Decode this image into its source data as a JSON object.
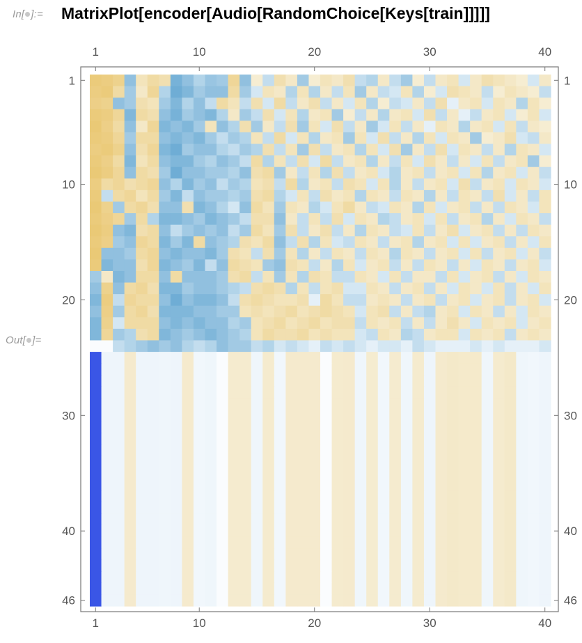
{
  "notebook": {
    "input_label_prefix": "In[",
    "input_label_suffix": "]:=",
    "output_label_prefix": "Out[",
    "output_label_suffix": "]=",
    "input_code": "MatrixPlot[encoder[Audio[RandomChoice[Keys[train]]]]]"
  },
  "chart_data": {
    "type": "heatmap",
    "title": "",
    "xlabel": "",
    "ylabel": "",
    "columns": 40,
    "rows": 46,
    "x_ticks": [
      1,
      10,
      20,
      30,
      40
    ],
    "y_ticks": [
      1,
      10,
      20,
      30,
      40,
      46
    ],
    "colors": {
      "high": "#e9c46a",
      "mid": "#f7f1de",
      "low": "#4d9acb",
      "accent_column": "#3a56e6",
      "frame": "#777777",
      "tick_text": "#555555"
    },
    "rows_data": [
      [
        0.85,
        0.8,
        0.7,
        -0.6,
        0.3,
        0.5,
        0.4,
        -0.75,
        -0.6,
        -0.4,
        -0.55,
        -0.5,
        0.6,
        -0.6,
        0.1,
        -0.3,
        0.4,
        0.2,
        -0.5,
        0.1,
        0.3,
        0.2,
        0.4,
        -0.3,
        -0.4,
        0.2,
        -0.3,
        -0.5,
        0.1,
        -0.3,
        0.2,
        0.3,
        -0.2,
        0.2,
        0.4,
        0.3,
        0.2,
        0.1,
        -0.2,
        0.2
      ],
      [
        0.8,
        0.85,
        0.5,
        -0.5,
        0.2,
        0.6,
        -0.4,
        -0.8,
        -0.7,
        -0.5,
        -0.6,
        -0.6,
        0.5,
        -0.5,
        -0.2,
        0.3,
        0.2,
        -0.4,
        0.3,
        -0.4,
        0.2,
        -0.3,
        0.3,
        -0.5,
        0.2,
        -0.3,
        -0.2,
        0.3,
        -0.4,
        0.1,
        -0.2,
        0.4,
        0.3,
        0.2,
        -0.3,
        0.1,
        0.3,
        0.2,
        0.1,
        -0.3
      ],
      [
        0.75,
        0.7,
        -0.6,
        -0.5,
        0.4,
        0.3,
        -0.5,
        -0.7,
        -0.4,
        -0.6,
        -0.3,
        0.5,
        0.3,
        -0.3,
        0.4,
        -0.2,
        0.5,
        -0.3,
        0.2,
        0.4,
        -0.3,
        0.2,
        -0.2,
        0.3,
        -0.4,
        0.1,
        -0.3,
        -0.2,
        0.2,
        -0.3,
        0.4,
        -0.1,
        0.2,
        0.3,
        -0.2,
        0.3,
        0.2,
        -0.4,
        0.3,
        0.1
      ],
      [
        0.85,
        0.8,
        0.6,
        -0.7,
        0.5,
        0.4,
        -0.6,
        -0.75,
        -0.5,
        -0.6,
        -0.7,
        -0.4,
        0.2,
        -0.5,
        -0.3,
        0.4,
        -0.2,
        0.3,
        -0.4,
        0.2,
        0.3,
        -0.5,
        0.1,
        -0.3,
        0.2,
        -0.4,
        0.2,
        0.3,
        -0.2,
        0.4,
        -0.3,
        0.2,
        -0.1,
        -0.3,
        0.2,
        0.3,
        -0.2,
        0.1,
        0.3,
        -0.2
      ],
      [
        0.9,
        0.75,
        0.5,
        -0.6,
        0.2,
        0.6,
        -0.7,
        -0.6,
        -0.7,
        -0.5,
        0.3,
        -0.6,
        -0.4,
        0.4,
        -0.5,
        0.2,
        -0.3,
        0.4,
        -0.5,
        0.3,
        -0.2,
        0.4,
        -0.3,
        0.2,
        -0.5,
        -0.2,
        0.3,
        -0.3,
        0.2,
        -0.1,
        0.3,
        0.2,
        -0.4,
        0.2,
        0.3,
        -0.2,
        0.3,
        -0.3,
        0.2,
        0.1
      ],
      [
        0.85,
        0.8,
        0.6,
        -0.5,
        0.5,
        0.5,
        -0.6,
        -0.7,
        -0.6,
        -0.7,
        -0.5,
        -0.3,
        -0.5,
        -0.4,
        0.3,
        -0.3,
        0.5,
        -0.2,
        0.3,
        -0.4,
        0.2,
        0.3,
        -0.5,
        0.3,
        -0.2,
        0.4,
        -0.3,
        0.2,
        -0.4,
        0.3,
        -0.2,
        0.3,
        0.2,
        -0.5,
        0.1,
        0.2,
        0.4,
        -0.2,
        -0.3,
        0.2
      ],
      [
        0.8,
        0.85,
        0.7,
        -0.6,
        0.4,
        0.6,
        -0.7,
        -0.8,
        -0.5,
        -0.6,
        -0.6,
        -0.4,
        -0.3,
        -0.5,
        -0.4,
        0.4,
        -0.3,
        0.3,
        -0.5,
        0.4,
        -0.3,
        0.2,
        0.3,
        -0.4,
        0.3,
        -0.2,
        0.4,
        -0.5,
        0.2,
        -0.3,
        0.4,
        -0.2,
        0.3,
        0.2,
        -0.3,
        0.2,
        -0.4,
        0.3,
        0.2,
        -0.2
      ],
      [
        0.85,
        0.75,
        0.5,
        -0.7,
        0.3,
        0.5,
        -0.6,
        -0.7,
        -0.7,
        -0.5,
        -0.4,
        -0.6,
        -0.5,
        -0.3,
        0.5,
        -0.4,
        0.3,
        -0.3,
        0.4,
        -0.2,
        0.5,
        -0.3,
        0.2,
        0.3,
        -0.4,
        0.2,
        -0.3,
        0.3,
        -0.2,
        0.4,
        0.2,
        -0.3,
        0.2,
        -0.2,
        0.3,
        -0.3,
        0.2,
        0.3,
        -0.5,
        0.1
      ],
      [
        0.9,
        0.8,
        0.6,
        -0.6,
        0.5,
        0.4,
        -0.5,
        -0.8,
        -0.6,
        -0.6,
        -0.5,
        -0.5,
        -0.4,
        -0.6,
        0.4,
        0.5,
        -0.5,
        0.2,
        -0.3,
        0.3,
        -0.4,
        0.4,
        -0.3,
        0.2,
        0.3,
        -0.2,
        -0.4,
        0.2,
        0.3,
        -0.3,
        0.2,
        0.3,
        -0.2,
        0.3,
        -0.4,
        0.2,
        0.3,
        -0.2,
        0.2,
        -0.3
      ],
      [
        0.8,
        0.5,
        0.6,
        0.4,
        0.5,
        0.6,
        -0.6,
        -0.4,
        -0.7,
        -0.5,
        -0.6,
        -0.3,
        -0.5,
        -0.4,
        0.3,
        0.4,
        -0.3,
        0.5,
        -0.4,
        0.2,
        0.3,
        -0.3,
        0.4,
        0.3,
        -0.2,
        0.3,
        -0.4,
        0.2,
        -0.3,
        0.2,
        0.3,
        -0.2,
        0.4,
        -0.3,
        0.2,
        0.3,
        -0.2,
        0.3,
        0.2,
        -0.2
      ],
      [
        0.85,
        -0.3,
        0.5,
        0.6,
        0.3,
        0.5,
        -0.5,
        -0.7,
        -0.3,
        -0.6,
        -0.5,
        -0.5,
        -0.4,
        -0.5,
        0.4,
        0.5,
        -0.4,
        -0.2,
        0.3,
        -0.3,
        0.4,
        0.2,
        0.3,
        -0.4,
        0.3,
        0.2,
        -0.3,
        0.3,
        0.2,
        -0.4,
        0.2,
        -0.3,
        0.3,
        0.2,
        -0.3,
        0.4,
        -0.2,
        0.2,
        -0.3,
        0.3
      ],
      [
        0.9,
        0.7,
        -0.5,
        0.5,
        0.6,
        0.4,
        -0.6,
        -0.6,
        0.4,
        -0.7,
        -0.6,
        -0.4,
        -0.2,
        -0.6,
        0.5,
        0.3,
        -0.5,
        0.3,
        0.2,
        -0.4,
        -0.2,
        0.3,
        0.5,
        0.2,
        -0.3,
        -0.2,
        0.3,
        0.2,
        -0.4,
        0.3,
        -0.2,
        0.2,
        0.3,
        -0.3,
        0.2,
        -0.3,
        0.3,
        0.2,
        -0.2,
        0.3
      ],
      [
        0.85,
        0.75,
        0.6,
        -0.5,
        0.5,
        -0.4,
        -0.7,
        -0.7,
        -0.6,
        -0.5,
        -0.7,
        -0.6,
        -0.5,
        -0.3,
        0.4,
        0.4,
        -0.6,
        0.2,
        -0.3,
        0.3,
        -0.3,
        0.4,
        -0.2,
        0.3,
        0.2,
        -0.4,
        -0.3,
        0.2,
        0.3,
        -0.2,
        0.3,
        -0.3,
        0.2,
        0.3,
        -0.4,
        0.2,
        -0.2,
        0.3,
        0.2,
        -0.3
      ],
      [
        0.9,
        0.8,
        -0.6,
        -0.7,
        0.4,
        0.5,
        -0.6,
        -0.3,
        -0.5,
        -0.6,
        -0.5,
        -0.6,
        -0.3,
        -0.5,
        0.5,
        0.3,
        -0.5,
        0.4,
        -0.3,
        0.2,
        0.4,
        -0.3,
        0.2,
        -0.4,
        0.3,
        0.2,
        -0.3,
        -0.2,
        0.3,
        -0.3,
        0.2,
        0.4,
        -0.2,
        0.2,
        0.3,
        -0.3,
        0.2,
        -0.3,
        0.3,
        0.2
      ],
      [
        0.85,
        0.75,
        -0.5,
        -0.6,
        0.6,
        0.5,
        -0.7,
        -0.5,
        -0.7,
        0.5,
        -0.6,
        -0.5,
        -0.4,
        0.4,
        0.3,
        0.5,
        -0.6,
        -0.3,
        0.4,
        -0.4,
        0.3,
        -0.2,
        -0.3,
        0.3,
        0.2,
        -0.3,
        0.2,
        0.3,
        -0.4,
        0.2,
        0.3,
        -0.2,
        0.3,
        -0.2,
        0.2,
        0.3,
        -0.3,
        0.2,
        -0.2,
        0.3
      ],
      [
        0.9,
        -0.6,
        -0.6,
        -0.5,
        0.5,
        0.6,
        -0.6,
        -0.7,
        -0.6,
        -0.6,
        -0.7,
        -0.5,
        0.4,
        0.3,
        -0.3,
        0.4,
        -0.5,
        0.3,
        -0.4,
        0.2,
        -0.3,
        0.3,
        0.2,
        -0.3,
        0.3,
        0.2,
        -0.4,
        0.3,
        0.2,
        -0.3,
        0.2,
        0.3,
        -0.2,
        0.3,
        -0.3,
        0.2,
        0.3,
        -0.2,
        0.2,
        -0.3
      ],
      [
        0.85,
        -0.7,
        -0.6,
        -0.6,
        0.4,
        0.6,
        -0.7,
        -0.6,
        -0.5,
        -0.7,
        -0.3,
        -0.6,
        0.5,
        0.4,
        0.3,
        -0.5,
        -0.6,
        0.4,
        0.3,
        -0.3,
        0.2,
        -0.4,
        0.3,
        -0.2,
        0.2,
        0.3,
        -0.3,
        0.2,
        -0.3,
        0.3,
        0.2,
        -0.3,
        0.2,
        -0.2,
        0.3,
        0.2,
        -0.3,
        0.2,
        0.3,
        -0.2
      ],
      [
        -0.5,
        0.2,
        -0.7,
        -0.6,
        0.5,
        0.5,
        -0.6,
        0.5,
        -0.6,
        -0.6,
        -0.6,
        -0.5,
        0.4,
        0.5,
        -0.3,
        0.3,
        -0.5,
        0.3,
        -0.4,
        0.4,
        0.3,
        -0.3,
        -0.3,
        0.3,
        0.2,
        -0.2,
        0.3,
        -0.3,
        0.2,
        0.2,
        -0.3,
        0.3,
        -0.2,
        0.2,
        0.3,
        -0.3,
        0.2,
        -0.2,
        0.3,
        0.2
      ],
      [
        -0.6,
        0.7,
        -0.6,
        0.5,
        0.6,
        0.4,
        -0.7,
        -0.7,
        -0.5,
        -0.6,
        -0.6,
        -0.5,
        -0.4,
        -0.3,
        0.4,
        0.5,
        0.4,
        -0.4,
        0.3,
        -0.3,
        0.3,
        0.4,
        -0.2,
        -0.2,
        0.3,
        0.2,
        -0.3,
        0.2,
        0.3,
        -0.3,
        0.2,
        -0.2,
        0.3,
        0.2,
        -0.2,
        0.3,
        -0.3,
        0.2,
        -0.2,
        0.3
      ],
      [
        -0.7,
        0.8,
        -0.3,
        0.6,
        0.5,
        0.5,
        -0.6,
        -0.8,
        -0.6,
        -0.7,
        -0.7,
        -0.6,
        -0.3,
        0.4,
        0.5,
        0.4,
        0.3,
        0.3,
        0.4,
        -0.1,
        0.5,
        0.3,
        -0.3,
        -0.3,
        0.2,
        0.3,
        0.2,
        -0.3,
        0.2,
        0.3,
        -0.3,
        0.2,
        0.3,
        -0.2,
        0.2,
        0.3,
        -0.3,
        0.2,
        0.3,
        -0.2
      ],
      [
        -0.6,
        0.75,
        -0.5,
        0.5,
        0.6,
        0.4,
        -0.7,
        -0.7,
        -0.7,
        -0.6,
        -0.6,
        -0.5,
        -0.5,
        0.3,
        0.4,
        0.3,
        0.4,
        0.5,
        0.3,
        0.4,
        0.5,
        0.4,
        0.3,
        -0.2,
        0.3,
        0.4,
        -0.3,
        0.2,
        -0.3,
        -0.4,
        0.2,
        0.3,
        -0.2,
        0.3,
        0.2,
        -0.3,
        0.2,
        -0.2,
        0.3,
        0.2
      ],
      [
        -0.7,
        0.7,
        -0.2,
        0.5,
        0.5,
        0.5,
        -0.6,
        -0.7,
        -0.6,
        -0.7,
        -0.6,
        -0.6,
        -0.4,
        -0.5,
        0.3,
        0.4,
        0.5,
        0.3,
        0.4,
        0.5,
        0.3,
        0.4,
        0.4,
        -0.3,
        0.3,
        0.2,
        0.3,
        -0.3,
        0.2,
        -0.3,
        0.2,
        0.4,
        0.2,
        -0.2,
        0.3,
        0.2,
        0.3,
        -0.2,
        0.2,
        0.3
      ],
      [
        -0.7,
        0.6,
        -0.5,
        -0.4,
        0.4,
        0.5,
        -0.7,
        -0.6,
        -0.5,
        -0.6,
        -0.7,
        -0.6,
        -0.5,
        -0.4,
        0.3,
        0.5,
        0.4,
        0.4,
        0.5,
        0.3,
        0.4,
        0.3,
        0.3,
        -0.2,
        -0.3,
        0.3,
        0.2,
        -0.4,
        -0.3,
        0.2,
        0.3,
        0.3,
        -0.2,
        0.3,
        0.2,
        0.3,
        -0.3,
        0.2,
        0.3,
        0.2
      ],
      [
        0,
        0,
        -0.3,
        -0.4,
        -0.5,
        -0.6,
        -0.5,
        -0.6,
        -0.4,
        -0.3,
        -0.4,
        -0.6,
        -0.5,
        -0.5,
        -0.3,
        -0.4,
        -0.2,
        -0.3,
        -0.2,
        -0.1,
        -0.3,
        -0.2,
        -0.3,
        -0.2,
        -0.1,
        -0.2,
        -0.2,
        -0.1,
        -0.3,
        -0.2,
        -0.1,
        -0.1,
        -0.1,
        -0.2,
        -0.1,
        -0.2,
        -0.1,
        -0.1,
        -0.1,
        -0.2
      ]
    ],
    "lower_band_columns": [
      -0.95,
      -0.05,
      -0.05,
      0.15,
      -0.05,
      -0.05,
      -0.04,
      -0.05,
      0.15,
      -0.03,
      -0.04,
      0.0,
      0.13,
      0.13,
      -0.04,
      0.14,
      -0.03,
      0.15,
      0.15,
      0.15,
      0.0,
      0.14,
      0.15,
      -0.04,
      0.12,
      -0.03,
      0.13,
      -0.04,
      0.14,
      -0.05,
      0.15,
      0.18,
      0.16,
      0.16,
      -0.04,
      0.14,
      0.18,
      -0.04,
      -0.03,
      -0.05
    ]
  }
}
